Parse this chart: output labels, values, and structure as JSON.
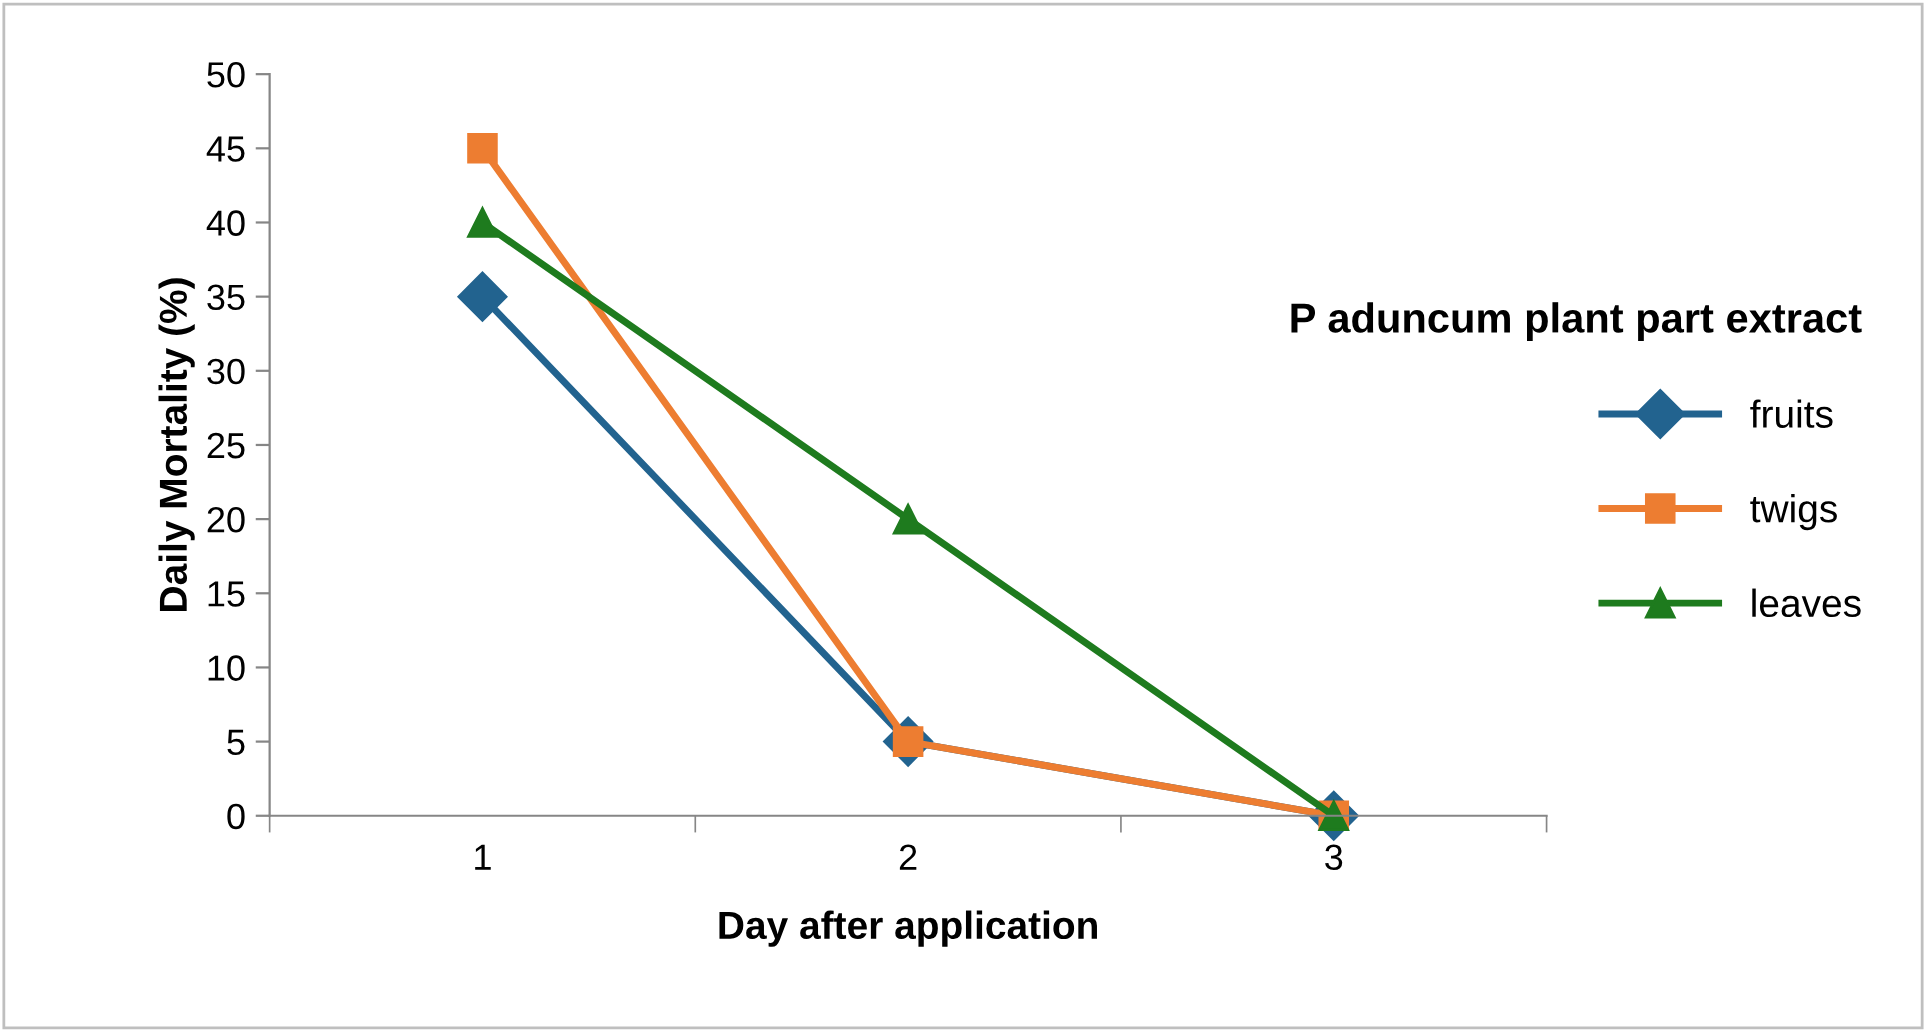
{
  "chart_data": {
    "type": "line",
    "xlabel": "Day after application",
    "ylabel": "Daily Mortality (%)",
    "legend_title": "P aduncum plant part extract",
    "categories": [
      "1",
      "2",
      "3"
    ],
    "series": [
      {
        "name": "fruits",
        "color": "#22638f",
        "marker": "diamond",
        "values": [
          35,
          5,
          0
        ]
      },
      {
        "name": "twigs",
        "color": "#ed7d31",
        "marker": "square",
        "values": [
          45,
          5,
          0
        ]
      },
      {
        "name": "leaves",
        "color": "#1e7b1e",
        "marker": "triangle",
        "values": [
          40,
          20,
          0
        ]
      }
    ],
    "ylim": [
      0,
      50
    ],
    "yticks": [
      0,
      5,
      10,
      15,
      20,
      25,
      30,
      35,
      40,
      45,
      50
    ],
    "grid": false,
    "legend": "right",
    "line_style": "solid"
  }
}
